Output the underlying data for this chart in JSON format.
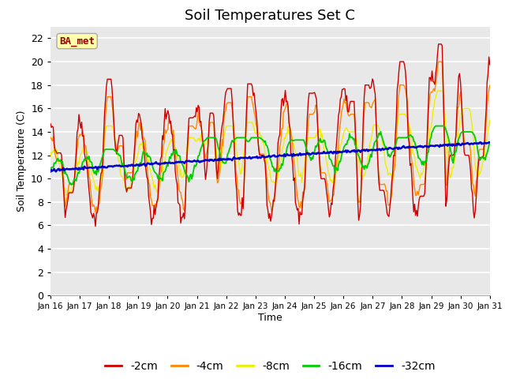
{
  "title": "Soil Temperatures Set C",
  "xlabel": "Time",
  "ylabel": "Soil Temperature (C)",
  "annotation": "BA_met",
  "ylim": [
    0,
    23
  ],
  "yticks": [
    0,
    2,
    4,
    6,
    8,
    10,
    12,
    14,
    16,
    18,
    20,
    22
  ],
  "xtick_labels": [
    "Jan 16",
    "Jan 17",
    "Jan 18",
    "Jan 19",
    "Jan 20",
    "Jan 21",
    "Jan 22",
    "Jan 23",
    "Jan 24",
    "Jan 25",
    "Jan 26",
    "Jan 27",
    "Jan 28",
    "Jan 29",
    "Jan 30",
    "Jan 31"
  ],
  "colors": {
    "-2cm": "#cc0000",
    "-4cm": "#ff8800",
    "-8cm": "#eeee00",
    "-16cm": "#00cc00",
    "-32cm": "#0000cc"
  },
  "light_band": "#e8e8e8",
  "dark_band": "#d8d8d8",
  "series_n": 480,
  "legend_fontsize": 10,
  "title_fontsize": 13
}
